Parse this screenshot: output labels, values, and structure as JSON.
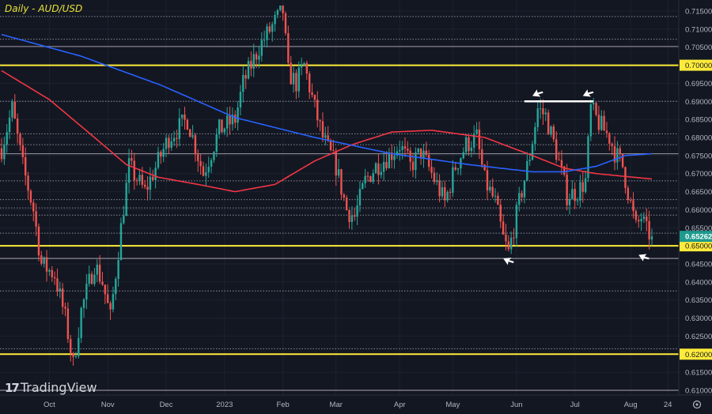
{
  "header": {
    "title": "Daily - AUD/USD"
  },
  "branding": {
    "logo_text": "TradingView",
    "logo_mark": "TV"
  },
  "colors": {
    "background": "#131722",
    "up": "#26a69a",
    "down": "#ef5350",
    "ma_fast": "#f23645",
    "ma_slow": "#2962ff",
    "level": "#ffeb3b",
    "last_price": "#1e9a8e",
    "grid": "#1e2230",
    "axis_text": "#b2b5be"
  },
  "chart_data": {
    "type": "candlestick",
    "title": "Daily - AUD/USD",
    "ylim": [
      0.6075,
      0.718
    ],
    "y_ticks": [
      "0.71500",
      "0.71000",
      "0.70500",
      "0.70000",
      "0.69500",
      "0.69000",
      "0.68500",
      "0.68000",
      "0.67500",
      "0.67000",
      "0.66500",
      "0.66000",
      "0.65500",
      "0.65000",
      "0.64500",
      "0.64000",
      "0.63500",
      "0.63000",
      "0.62500",
      "0.62000",
      "0.61500",
      "0.61000"
    ],
    "x_labels": [
      {
        "label": "Oct",
        "day": 18
      },
      {
        "label": "Nov",
        "day": 40
      },
      {
        "label": "Dec",
        "day": 62
      },
      {
        "label": "2023",
        "day": 84
      },
      {
        "label": "Feb",
        "day": 106
      },
      {
        "label": "Mar",
        "day": 126
      },
      {
        "label": "Apr",
        "day": 150
      },
      {
        "label": "May",
        "day": 170
      },
      {
        "label": "Jun",
        "day": 194
      },
      {
        "label": "Jul",
        "day": 216
      },
      {
        "label": "Aug",
        "day": 237
      },
      {
        "label": "24",
        "day": 251
      }
    ],
    "x_range_days": [
      0,
      256
    ],
    "close_path": [
      [
        0,
        0.677
      ],
      [
        4,
        0.688
      ],
      [
        8,
        0.672
      ],
      [
        12,
        0.66
      ],
      [
        15,
        0.645
      ],
      [
        20,
        0.642
      ],
      [
        24,
        0.63
      ],
      [
        27,
        0.617
      ],
      [
        30,
        0.632
      ],
      [
        35,
        0.645
      ],
      [
        38,
        0.64
      ],
      [
        41,
        0.63
      ],
      [
        45,
        0.655
      ],
      [
        48,
        0.672
      ],
      [
        54,
        0.665
      ],
      [
        60,
        0.675
      ],
      [
        63,
        0.68
      ],
      [
        70,
        0.685
      ],
      [
        76,
        0.67
      ],
      [
        82,
        0.682
      ],
      [
        88,
        0.685
      ],
      [
        91,
        0.695
      ],
      [
        97,
        0.705
      ],
      [
        103,
        0.712
      ],
      [
        106,
        0.715
      ],
      [
        108,
        0.698
      ],
      [
        111,
        0.695
      ],
      [
        114,
        0.7
      ],
      [
        118,
        0.688
      ],
      [
        121,
        0.68
      ],
      [
        126,
        0.672
      ],
      [
        130,
        0.66
      ],
      [
        133,
        0.658
      ],
      [
        137,
        0.668
      ],
      [
        141,
        0.672
      ],
      [
        146,
        0.675
      ],
      [
        150,
        0.678
      ],
      [
        154,
        0.672
      ],
      [
        158,
        0.676
      ],
      [
        162,
        0.67
      ],
      [
        167,
        0.662
      ],
      [
        171,
        0.672
      ],
      [
        175,
        0.678
      ],
      [
        179,
        0.68
      ],
      [
        182,
        0.668
      ],
      [
        186,
        0.662
      ],
      [
        189,
        0.652
      ],
      [
        191,
        0.648
      ],
      [
        195,
        0.662
      ],
      [
        199,
        0.675
      ],
      [
        202,
        0.688
      ],
      [
        205,
        0.686
      ],
      [
        209,
        0.676
      ],
      [
        213,
        0.664
      ],
      [
        217,
        0.665
      ],
      [
        220,
        0.668
      ],
      [
        222,
        0.688
      ],
      [
        225,
        0.684
      ],
      [
        229,
        0.68
      ],
      [
        231,
        0.676
      ],
      [
        234,
        0.672
      ],
      [
        236,
        0.665
      ],
      [
        239,
        0.655
      ],
      [
        241,
        0.658
      ],
      [
        243,
        0.654
      ],
      [
        245,
        0.65262
      ]
    ],
    "ma_fast": [
      [
        0,
        0.6985
      ],
      [
        18,
        0.6905
      ],
      [
        35,
        0.68
      ],
      [
        47,
        0.6725
      ],
      [
        59,
        0.669
      ],
      [
        74,
        0.667
      ],
      [
        88,
        0.665
      ],
      [
        103,
        0.667
      ],
      [
        118,
        0.6735
      ],
      [
        132,
        0.678
      ],
      [
        147,
        0.6815
      ],
      [
        162,
        0.682
      ],
      [
        182,
        0.68
      ],
      [
        200,
        0.675
      ],
      [
        212,
        0.6715
      ],
      [
        224,
        0.67
      ],
      [
        245,
        0.6685
      ]
    ],
    "ma_slow": [
      [
        0,
        0.7085
      ],
      [
        30,
        0.7025
      ],
      [
        60,
        0.6945
      ],
      [
        88,
        0.6855
      ],
      [
        118,
        0.68
      ],
      [
        147,
        0.6755
      ],
      [
        176,
        0.6725
      ],
      [
        200,
        0.6705
      ],
      [
        212,
        0.6705
      ],
      [
        224,
        0.672
      ],
      [
        235,
        0.675
      ],
      [
        245,
        0.6755
      ]
    ],
    "levels": [
      {
        "price": 0.7,
        "style": "yellow",
        "label": "0.70000"
      },
      {
        "price": 0.65,
        "style": "yellow",
        "label": "0.65000"
      },
      {
        "price": 0.62,
        "style": "yellow",
        "label": "0.62000"
      },
      {
        "price": 0.7052,
        "style": "solid"
      },
      {
        "price": 0.6755,
        "style": "solid"
      },
      {
        "price": 0.6465,
        "style": "solid"
      },
      {
        "price": 0.61,
        "style": "solid"
      },
      {
        "price": 0.7135,
        "style": "dotted"
      },
      {
        "price": 0.7072,
        "style": "dotted"
      },
      {
        "price": 0.69,
        "style": "dotted"
      },
      {
        "price": 0.681,
        "style": "dotted"
      },
      {
        "price": 0.678,
        "style": "dotted"
      },
      {
        "price": 0.668,
        "style": "dotted"
      },
      {
        "price": 0.6628,
        "style": "dotted"
      },
      {
        "price": 0.6605,
        "style": "dotted"
      },
      {
        "price": 0.6585,
        "style": "dotted"
      },
      {
        "price": 0.6535,
        "style": "dotted"
      },
      {
        "price": 0.6375,
        "style": "dotted"
      },
      {
        "price": 0.6215,
        "style": "dotted"
      }
    ],
    "last_price": {
      "value": 0.65262,
      "label": "0.65262"
    },
    "annotations": {
      "double_top_line": {
        "price": 0.69,
        "from_day": 197,
        "to_day": 223
      },
      "arrows": [
        {
          "day": 200,
          "price": 0.6915
        },
        {
          "day": 219,
          "price": 0.6915
        },
        {
          "day": 189,
          "price": 0.6465
        },
        {
          "day": 240,
          "price": 0.6475
        }
      ]
    }
  }
}
